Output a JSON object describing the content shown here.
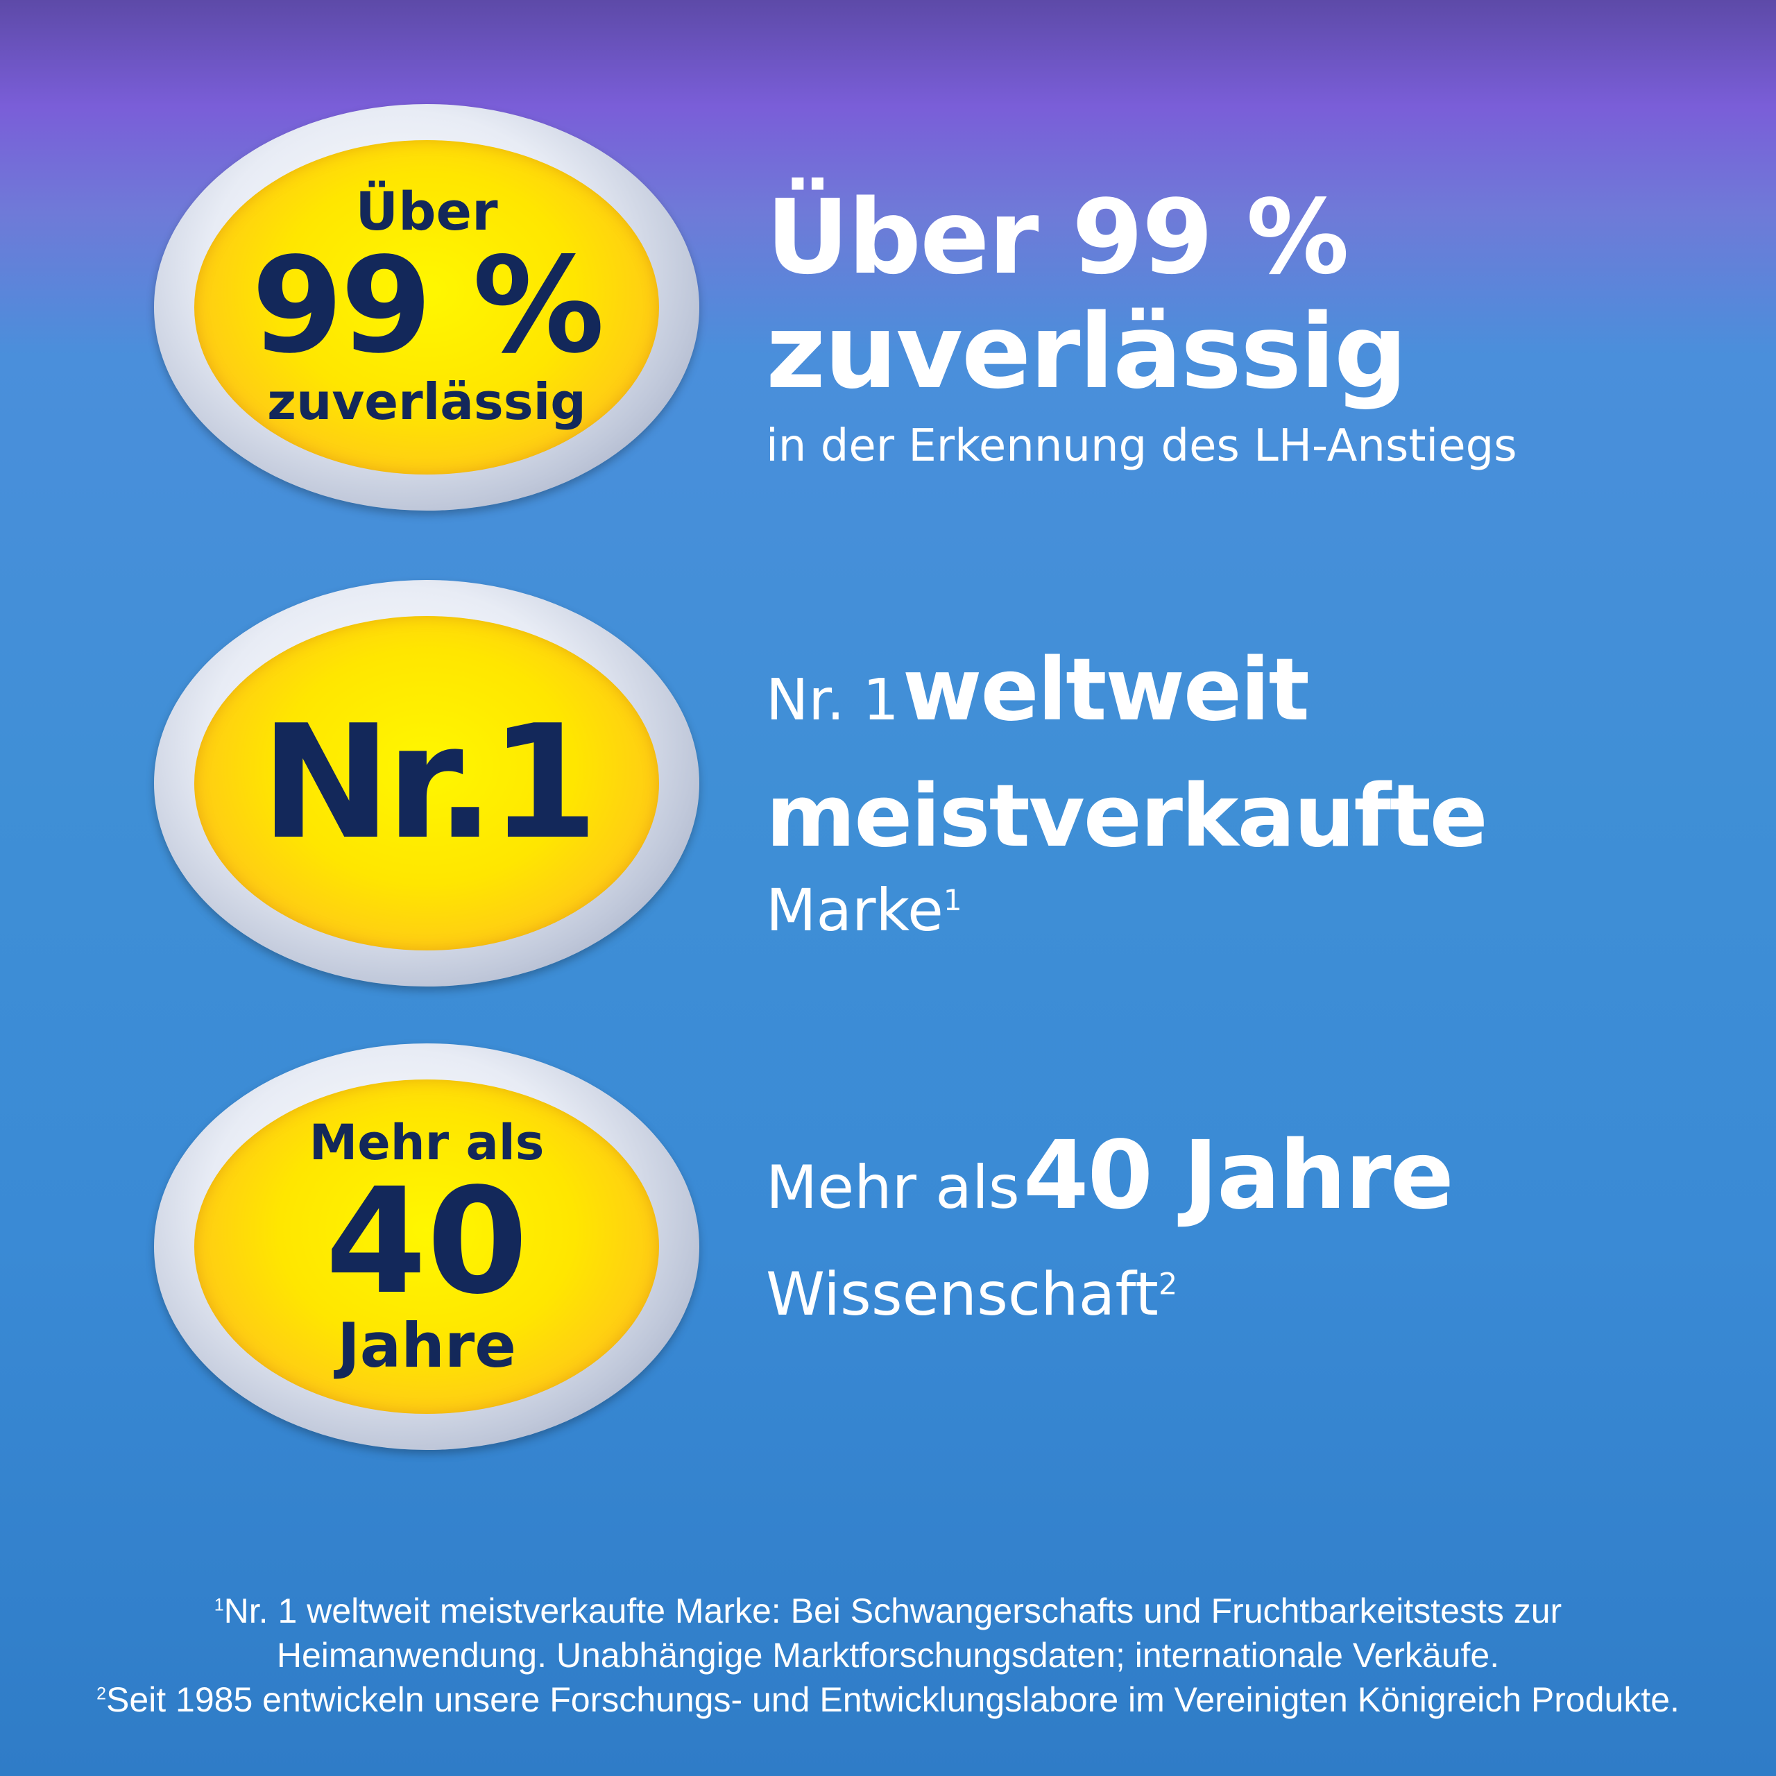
{
  "badges": [
    {
      "top": "Über",
      "big": "99 %",
      "bottom": "zuverlässig"
    },
    {
      "big": "Nr.1"
    },
    {
      "top": "Mehr als",
      "big": "40",
      "bottom": "Jahre"
    }
  ],
  "claims": {
    "c1": {
      "line1": "Über 99 %",
      "line2": "zuverlässig",
      "line3": "in der Erkennung des LH-Anstiegs"
    },
    "c2": {
      "prefix": "Nr. 1",
      "emph": "weltweit",
      "line2": "meistverkaufte",
      "line3": "Marke",
      "sup": "1"
    },
    "c3": {
      "prefix": "Mehr als",
      "emph": "40 Jahre",
      "line2": "Wissenschaft",
      "sup": "2"
    }
  },
  "footnotes": {
    "n1_sup": "1",
    "n1_a": "Nr. 1 weltweit meistverkaufte Marke: Bei Schwangerschafts und Fruchtbarkeitstests zur",
    "n1_b": "Heimanwendung. Unabhängige Marktforschungsdaten; internationale Verkäufe.",
    "n2_sup": "2",
    "n2": "Seit 1985 entwickeln unsere Forschungs- und Entwicklungslabore im Vereinigten Königreich Produkte."
  },
  "colors": {
    "badge_text": "#13285a",
    "badge_yellow": "#ffe600",
    "bg_top": "#7a5ed8",
    "bg_bottom": "#2f7cc7"
  }
}
